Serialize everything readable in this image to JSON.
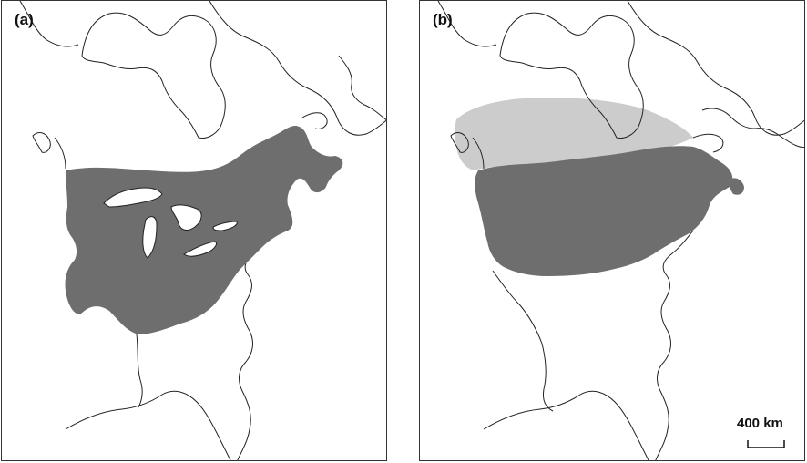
{
  "panels": [
    {
      "label": "(a)"
    },
    {
      "label": "(b)"
    }
  ],
  "scale_bar": {
    "label": "400 km"
  },
  "colors": {
    "range_primary": "#6e6e6e",
    "range_secondary": "#cccccc",
    "coastline": "#222222",
    "background": "#ffffff"
  }
}
